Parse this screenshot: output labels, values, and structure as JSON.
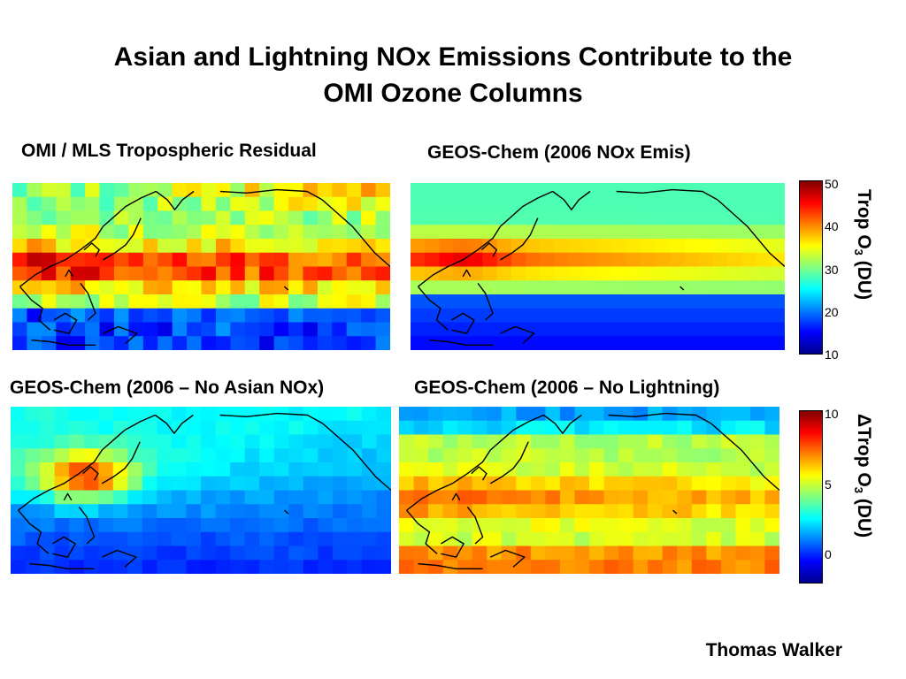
{
  "title": {
    "line1": "Asian and Lightning NOx Emissions Contribute to the",
    "line2": "OMI Ozone Columns"
  },
  "panels": {
    "omi": {
      "label": "OMI / MLS Tropospheric Residual"
    },
    "geos_2006": {
      "label": "GEOS-Chem (2006 NOx Emis)"
    },
    "no_asian": {
      "label": "GEOS-Chem (2006 – No Asian NOx)"
    },
    "no_lightning": {
      "label": "GEOS-Chem (2006 – No Lightning)"
    }
  },
  "colorbar_top": {
    "title_main": "Trop O",
    "title_sub": "3",
    "title_units": " (DU)",
    "ticks": [
      "50",
      "40",
      "30",
      "20",
      "10"
    ],
    "range": [
      10,
      50
    ]
  },
  "colorbar_bottom": {
    "title_main": "ΔTrop O",
    "title_sub": "3",
    "title_units": " (DU)",
    "ticks": [
      "10",
      "5",
      "0"
    ],
    "range": [
      -2,
      10
    ]
  },
  "author": "Thomas Walker",
  "colormap": [
    "#00008f",
    "#0000ff",
    "#0080ff",
    "#00ffff",
    "#80ff80",
    "#ffff00",
    "#ff8000",
    "#ff0000",
    "#800000"
  ]
}
